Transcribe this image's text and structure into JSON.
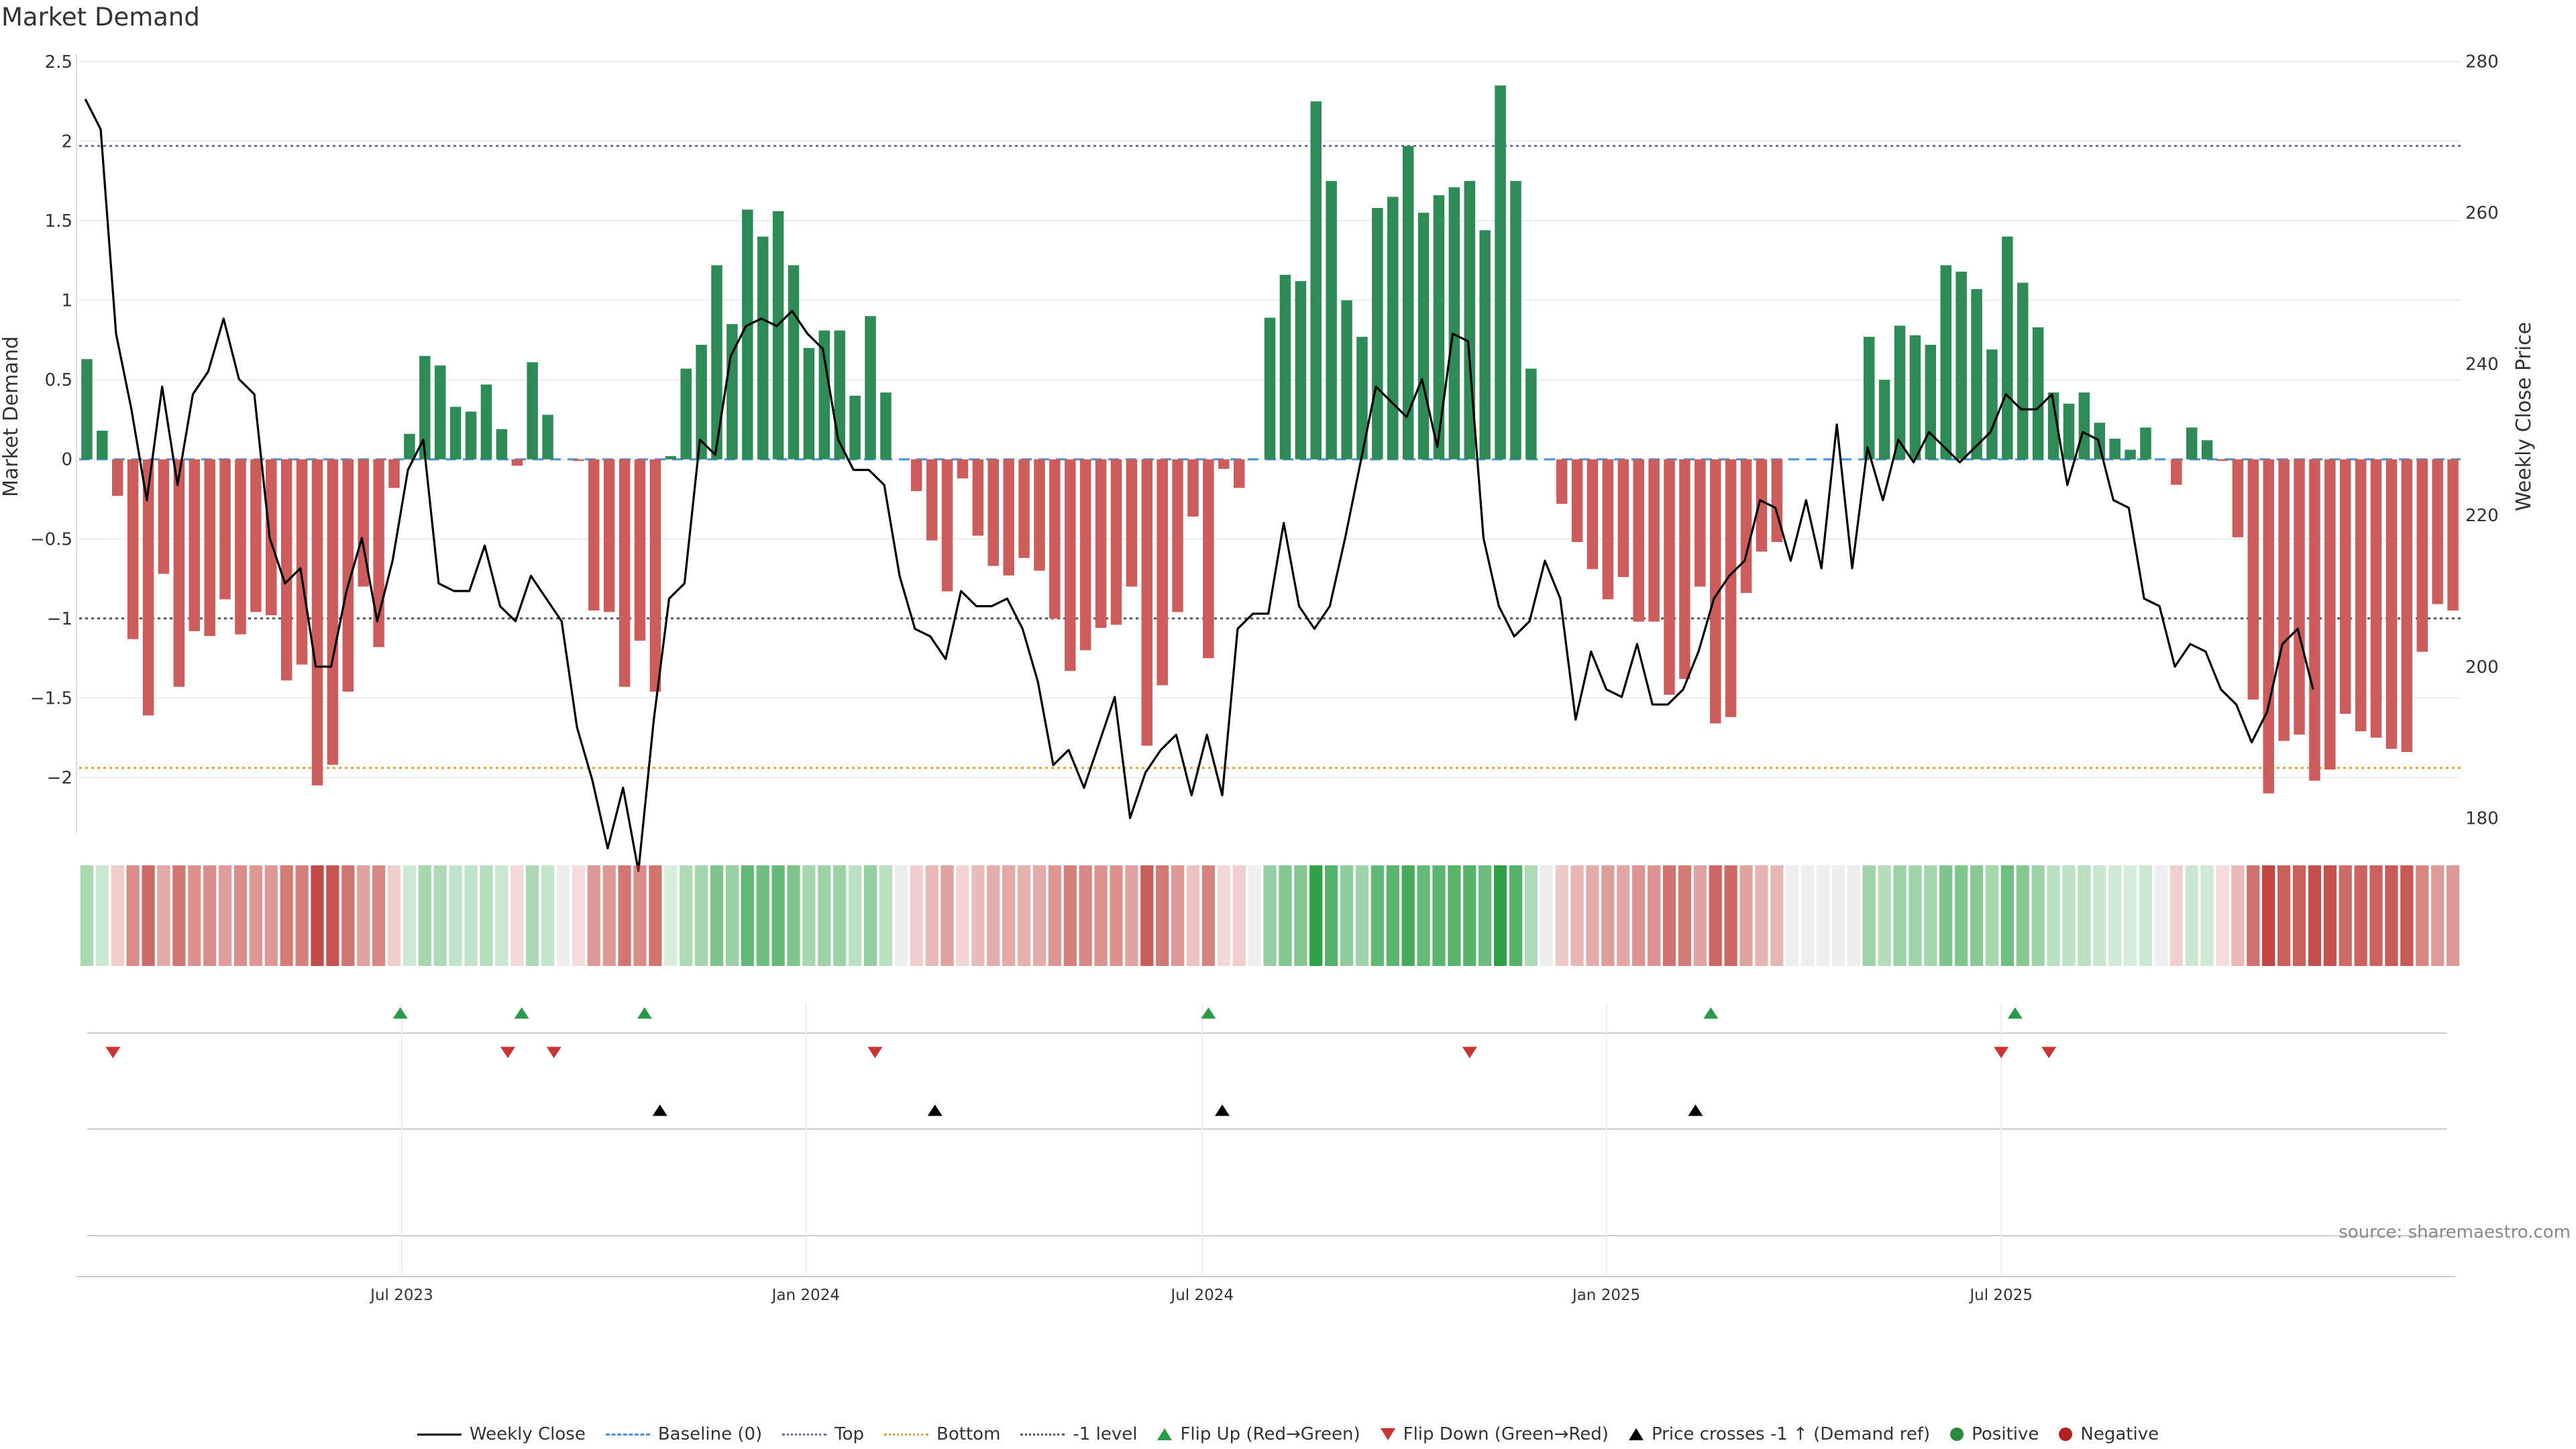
{
  "title": "Market Demand",
  "source": "source: sharemaestro.com",
  "colors": {
    "positive": "#2e8b57",
    "negative": "#cd5c5c",
    "price_line": "#000000",
    "top_line": "#6b6bb3",
    "bottom_line": "#e8a030",
    "minus1_line": "#555555",
    "baseline": "#4a90d9",
    "flip_up": "#2a9a4a",
    "flip_down": "#cc3333",
    "cross": "#000000"
  },
  "legend": [
    {
      "key": "weekly_close",
      "label": "Weekly Close"
    },
    {
      "key": "baseline",
      "label": "Baseline (0)"
    },
    {
      "key": "top",
      "label": "Top"
    },
    {
      "key": "bottom",
      "label": "Bottom"
    },
    {
      "key": "minus1",
      "label": "-1 level"
    },
    {
      "key": "flip_up",
      "label": "Flip Up (Red→Green)"
    },
    {
      "key": "flip_down",
      "label": "Flip Down (Green→Red)"
    },
    {
      "key": "cross",
      "label": "Price crosses -1 ↑ (Demand ref)"
    },
    {
      "key": "positive",
      "label": "Positive"
    },
    {
      "key": "negative",
      "label": "Negative"
    }
  ],
  "chart_data": {
    "type": "bar",
    "title": "Market Demand",
    "ylabel": "Market Demand",
    "y2label": "Weekly Close Price",
    "ylim": [
      -2.35,
      2.55
    ],
    "y2lim": [
      178,
      281
    ],
    "yticks": [
      "2.5",
      "2",
      "1.5",
      "1",
      "0.5",
      "0",
      "−0.5",
      "−1",
      "−1.5",
      "−2"
    ],
    "ytick_values": [
      2.5,
      2,
      1.5,
      1,
      0.5,
      0,
      -0.5,
      -1,
      -1.5,
      -2
    ],
    "y2ticks": [
      "280",
      "260",
      "240",
      "220",
      "200",
      "180"
    ],
    "y2tick_values": [
      280,
      260,
      240,
      220,
      200,
      180
    ],
    "x_labels": [
      {
        "label": "Jul 2023",
        "week": 21
      },
      {
        "label": "Jan 2024",
        "week": 47.3
      },
      {
        "label": "Jul 2024",
        "week": 73.1
      },
      {
        "label": "Jan 2025",
        "week": 99.4
      },
      {
        "label": "Jul 2025",
        "week": 125.1
      }
    ],
    "reference_lines": {
      "top": 1.97,
      "bottom": -1.94,
      "minus1": -1.0,
      "baseline": 0
    },
    "series": [
      {
        "name": "Market Demand",
        "values": [
          0.63,
          0.18,
          -0.23,
          -1.13,
          -1.61,
          -0.72,
          -1.43,
          -1.08,
          -1.11,
          -0.88,
          -1.1,
          -0.96,
          -0.98,
          -1.39,
          -1.29,
          -2.05,
          -1.92,
          -1.46,
          -0.8,
          -1.18,
          -0.18,
          0.16,
          0.65,
          0.59,
          0.33,
          0.3,
          0.47,
          0.19,
          -0.04,
          0.61,
          0.28,
          0,
          -0.01,
          -0.95,
          -0.96,
          -1.43,
          -1.14,
          -1.46,
          0.02,
          0.57,
          0.72,
          1.22,
          0.85,
          1.57,
          1.4,
          1.56,
          1.22,
          0.7,
          0.81,
          0.81,
          0.4,
          0.9,
          0.42,
          0,
          -0.2,
          -0.51,
          -0.83,
          -0.12,
          -0.48,
          -0.67,
          -0.73,
          -0.62,
          -0.7,
          -1.0,
          -1.33,
          -1.2,
          -1.06,
          -1.04,
          -0.8,
          -1.8,
          -1.42,
          -0.96,
          -0.36,
          -1.25,
          -0.06,
          -0.18,
          0,
          0.89,
          1.16,
          1.12,
          2.25,
          1.75,
          1.0,
          0.77,
          1.58,
          1.65,
          1.97,
          1.55,
          1.66,
          1.71,
          1.75,
          1.44,
          2.35,
          1.75,
          0.57,
          0,
          -0.28,
          -0.52,
          -0.69,
          -0.88,
          -0.74,
          -1.02,
          -1.02,
          -1.48,
          -1.38,
          -0.8,
          -1.66,
          -1.62,
          -0.84,
          -0.58,
          -0.52,
          0,
          0,
          0,
          0,
          0,
          0.77,
          0.5,
          0.84,
          0.78,
          0.72,
          1.22,
          1.18,
          1.07,
          0.69,
          1.4,
          1.11,
          0.83,
          0.42,
          0.35,
          0.42,
          0.23,
          0.13,
          0.06,
          0.2,
          0,
          -0.16,
          0.2,
          0.12,
          -0.01,
          -0.49,
          -1.51,
          -2.1,
          -1.77,
          -1.73,
          -2.02,
          -1.95,
          -1.6,
          -1.71,
          -1.75,
          -1.82,
          -1.84,
          -1.21,
          -0.91,
          -0.95
        ]
      },
      {
        "name": "Weekly Close",
        "axis": "right",
        "values": [
          275,
          271,
          244,
          234,
          222,
          237,
          224,
          236,
          239,
          246,
          238,
          236,
          217,
          211,
          213,
          200,
          200,
          210,
          217,
          206,
          214,
          226,
          230,
          211,
          210,
          210,
          216,
          208,
          206,
          212,
          209,
          206,
          192,
          185,
          176,
          184,
          173,
          193,
          209,
          211,
          230,
          228,
          241,
          245,
          246,
          245,
          247,
          244,
          242,
          230,
          226,
          226,
          224,
          212,
          205,
          204,
          201,
          210,
          208,
          208,
          209,
          205,
          198,
          187,
          189,
          184,
          190,
          196,
          180,
          186,
          189,
          191,
          183,
          191,
          183,
          205,
          207,
          207,
          219,
          208,
          205,
          208,
          217,
          227,
          237,
          235,
          233,
          238,
          229,
          244,
          243,
          217,
          208,
          204,
          206,
          214,
          209,
          193,
          202,
          197,
          196,
          203,
          195,
          195,
          197,
          202,
          209,
          212,
          214,
          222,
          221,
          214,
          222,
          213,
          232,
          213,
          229,
          222,
          230,
          227,
          231,
          229,
          227,
          229,
          231,
          236,
          234,
          234,
          236,
          224,
          231,
          230,
          222,
          221,
          209,
          208,
          200,
          203,
          202,
          197,
          195,
          190,
          194,
          203,
          205,
          197
        ],
        "offset": 0.4
      }
    ],
    "flip_up_weeks": [
      20.9,
      28.8,
      36.8,
      73.5,
      106.2,
      126.0
    ],
    "flip_down_weeks": [
      2.2,
      27.9,
      30.9,
      51.8,
      90.5,
      125.1,
      128.2
    ],
    "cross_weeks": [
      37.8,
      55.7,
      74.4,
      105.2
    ]
  }
}
